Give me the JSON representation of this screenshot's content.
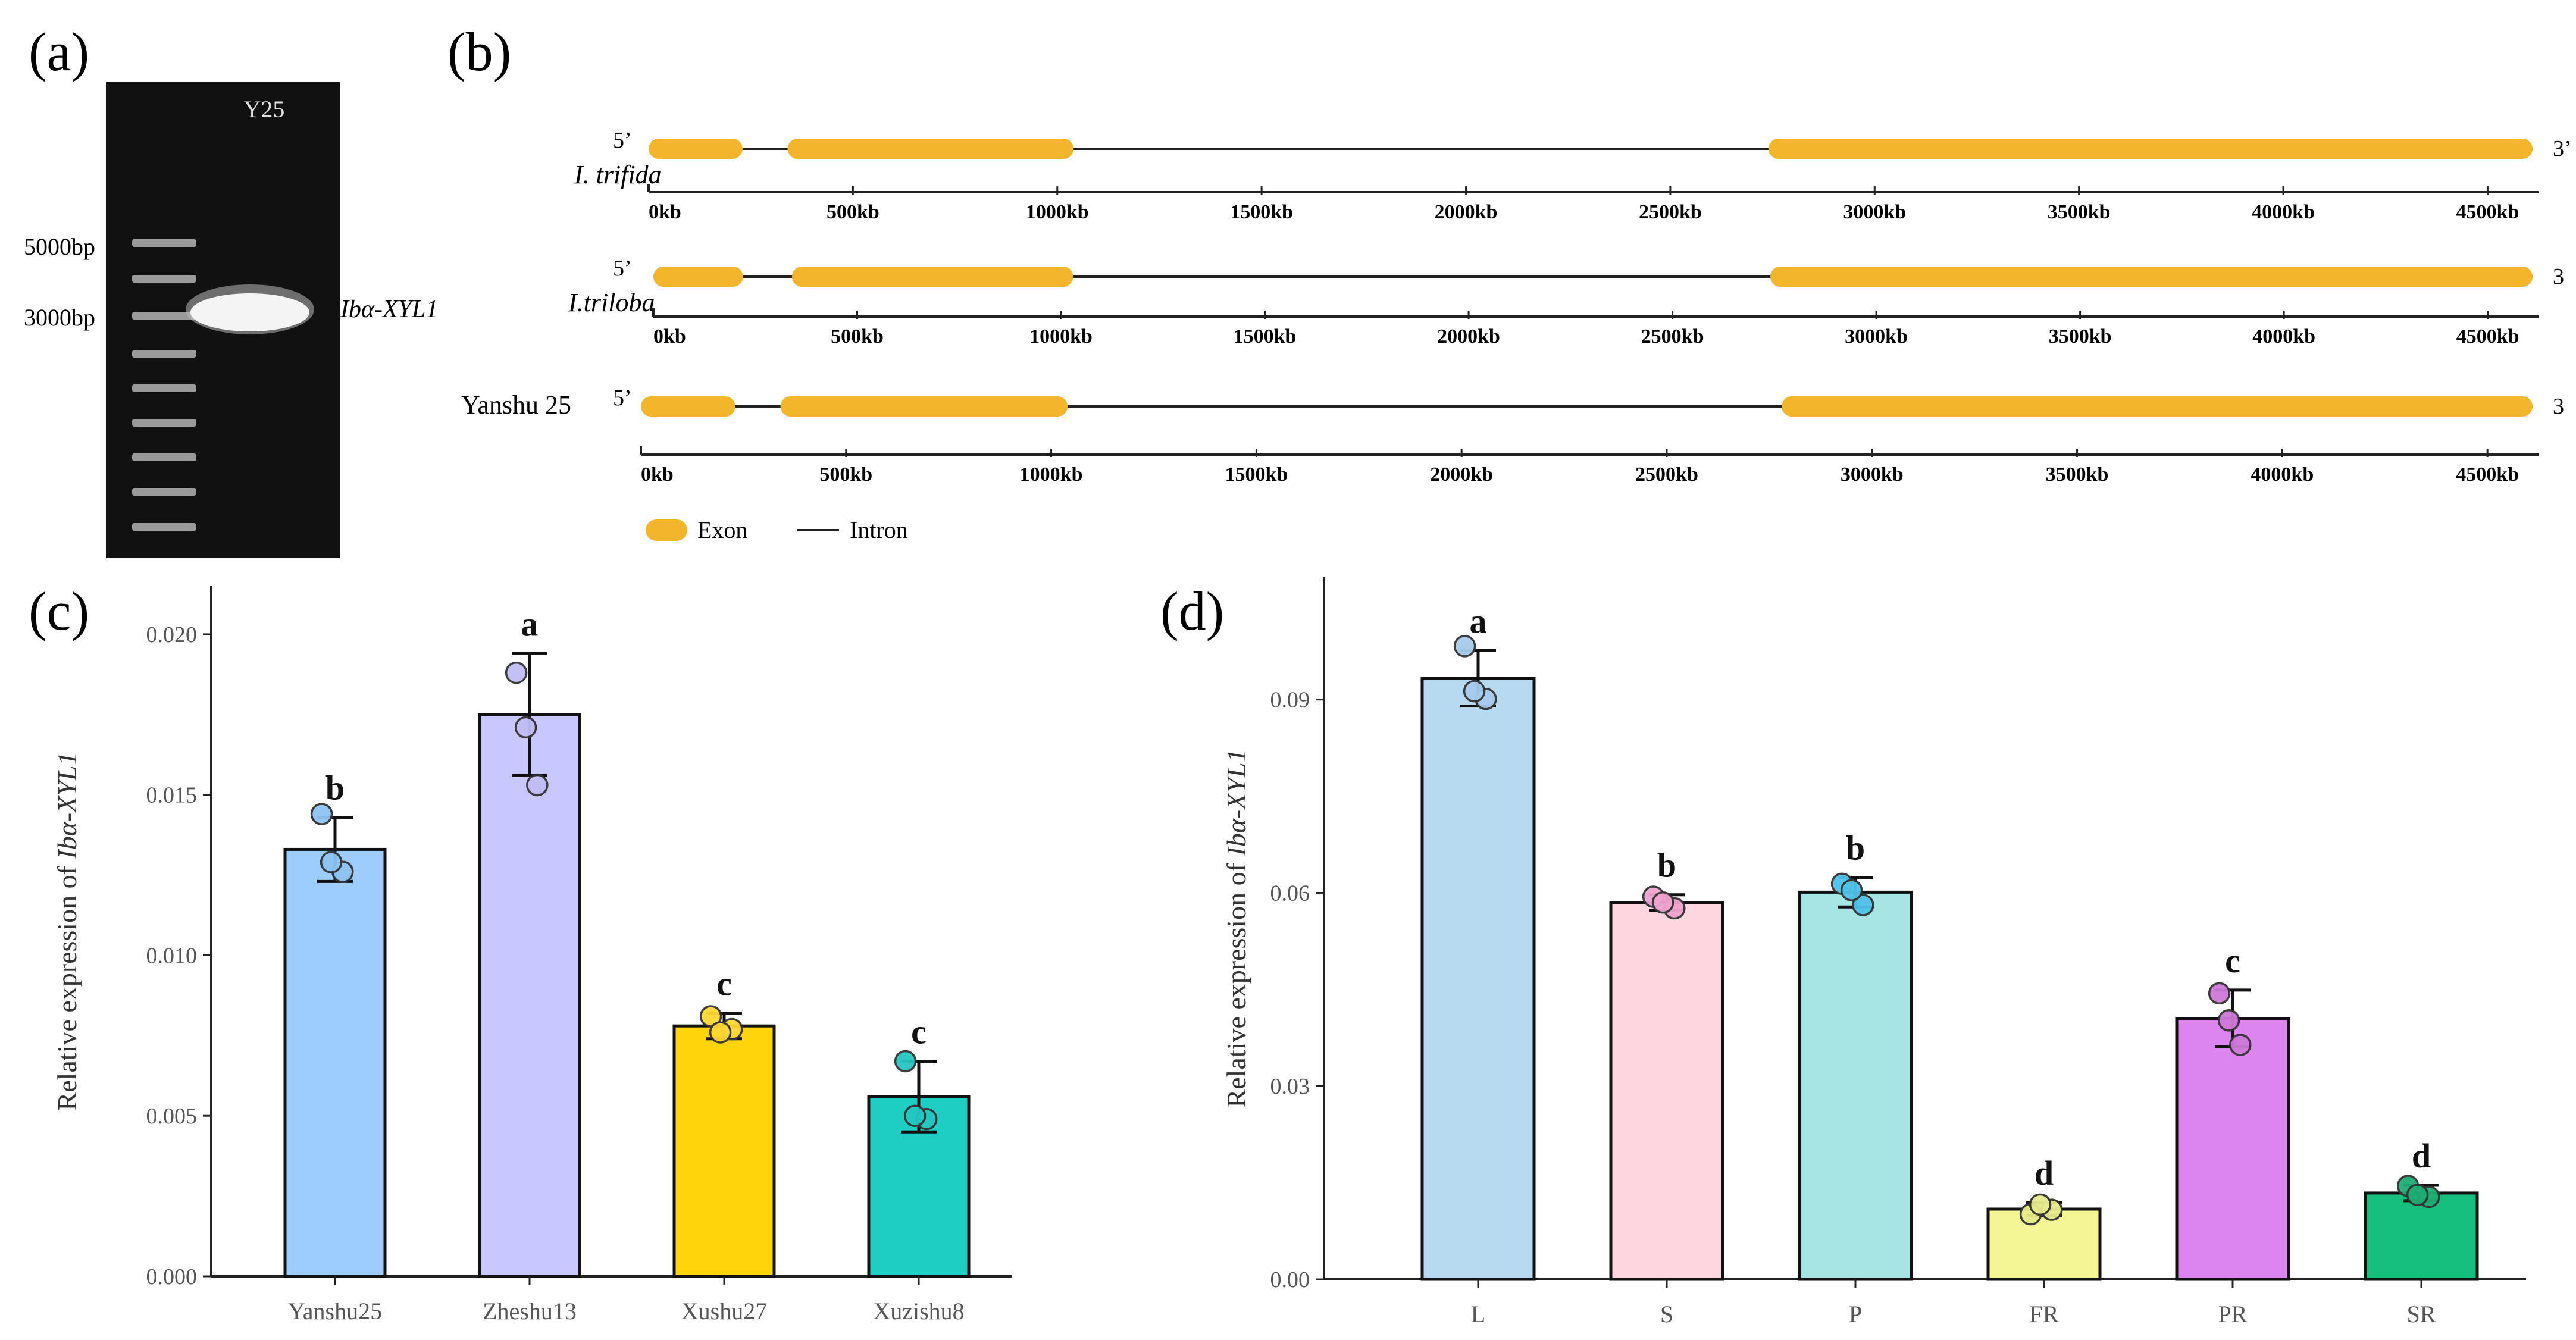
{
  "panel_labels": {
    "a": "(a)",
    "b": "(b)",
    "c": "(c)",
    "d": "(d)"
  },
  "colors": {
    "exon": "#f2b52c",
    "intron": "#222222",
    "gel_bg": "#111111",
    "band": "#d8d8d8"
  },
  "gel": {
    "lane_label": "Y25",
    "marker_5000": "5000bp",
    "marker_3000": "3000bp",
    "band_label": "Ibα-XYL1",
    "ladder_levels": 9
  },
  "gene_structure": {
    "tick_labels": [
      "0kb",
      "500kb",
      "1000kb",
      "1500kb",
      "2000kb",
      "2500kb",
      "3000kb",
      "3500kb",
      "4000kb",
      "4500kb"
    ],
    "rows": [
      {
        "name": "I. trifida",
        "five_prime": "5’",
        "three_prime": "3’",
        "exons": [
          [
            0,
            230
          ],
          [
            340,
            1040
          ],
          [
            2740,
            4610
          ]
        ]
      },
      {
        "name": "I.triloba",
        "five_prime": "5’",
        "three_prime": "3",
        "exons": [
          [
            0,
            220
          ],
          [
            340,
            1030
          ],
          [
            2740,
            4610
          ]
        ]
      },
      {
        "name": "Yanshu 25",
        "five_prime": "5’",
        "three_prime": "3",
        "exons": [
          [
            0,
            230
          ],
          [
            340,
            1040
          ],
          [
            2780,
            4610
          ]
        ]
      }
    ],
    "legend": {
      "exon": "Exon",
      "intron": "Intron"
    }
  },
  "chart_data": [
    {
      "panel": "c",
      "type": "bar",
      "ylabel_prefix": "Relative expression of ",
      "ylabel_gene": "Ibα-XYL1",
      "ylim": [
        0,
        0.0215
      ],
      "yticks": [
        "0.000",
        "0.005",
        "0.010",
        "0.015",
        "0.020"
      ],
      "ytick_values": [
        0,
        0.005,
        0.01,
        0.015,
        0.02
      ],
      "categories": [
        "Yanshu25",
        "Zheshu13",
        "Xushu27",
        "Xuzishu8"
      ],
      "values": [
        0.0133,
        0.0175,
        0.0078,
        0.0056
      ],
      "errors": [
        0.001,
        0.0019,
        0.0004,
        0.0011
      ],
      "letters": [
        "b",
        "a",
        "c",
        "c"
      ],
      "bar_colors": [
        "#9dcdff",
        "#c9c7ff",
        "#ffd40a",
        "#1ecec3"
      ],
      "point_colors": [
        "#8ec4f2",
        "#c0bdf5",
        "#ffd833",
        "#25c6c2"
      ],
      "points": [
        [
          0.0144,
          0.0126,
          0.0129
        ],
        [
          0.0188,
          0.0153,
          0.0171
        ],
        [
          0.0081,
          0.0077,
          0.0076
        ],
        [
          0.0067,
          0.0049,
          0.005
        ]
      ]
    },
    {
      "panel": "d",
      "type": "bar",
      "ylabel_prefix": "Relative expression of ",
      "ylabel_gene": "Ibα-XYL1",
      "ylim": [
        0,
        0.109
      ],
      "yticks": [
        "0.00",
        "0.03",
        "0.06",
        "0.09"
      ],
      "ytick_values": [
        0,
        0.03,
        0.06,
        0.09
      ],
      "categories": [
        "L",
        "S",
        "P",
        "FR",
        "PR",
        "SR"
      ],
      "values": [
        0.0933,
        0.0585,
        0.0601,
        0.0109,
        0.0405,
        0.0134
      ],
      "errors": [
        0.0043,
        0.0012,
        0.0023,
        0.001,
        0.0044,
        0.0012
      ],
      "letters": [
        "a",
        "b",
        "b",
        "d",
        "c",
        "d"
      ],
      "bar_colors": [
        "#b8daf0",
        "#fdd6df",
        "#a5e6e4",
        "#f4f594",
        "#dc84f0",
        "#16c07c"
      ],
      "point_colors": [
        "#a6cbeb",
        "#f0a3cf",
        "#4fc2ea",
        "#e6ec8c",
        "#cf7ad9",
        "#1dae73"
      ],
      "points": [
        [
          0.0983,
          0.0901,
          0.0913
        ],
        [
          0.0594,
          0.0576,
          0.0585
        ],
        [
          0.0614,
          0.0581,
          0.0604
        ],
        [
          0.0101,
          0.0108,
          0.0116
        ],
        [
          0.0444,
          0.0364,
          0.0402
        ],
        [
          0.0145,
          0.0128,
          0.0131
        ]
      ]
    }
  ]
}
